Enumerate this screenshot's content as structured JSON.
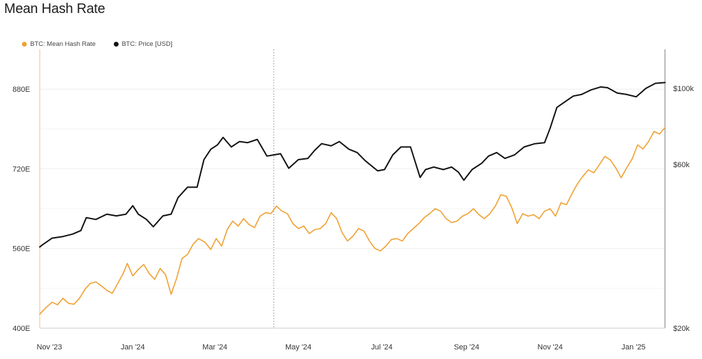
{
  "title": "Mean Hash Rate",
  "colors": {
    "hash": "#f0a030",
    "price": "#111111",
    "grid": "#eeeeee",
    "axis": "#888888"
  },
  "legend": {
    "hash": "BTC: Mean Hash Rate",
    "price": "BTC: Price [USD]"
  },
  "chart_data": {
    "type": "line",
    "x_start": "2023-11-01",
    "x_end": "2025-01-31",
    "x_ticks": [
      {
        "date": "2023-11-01",
        "label": "Nov '23"
      },
      {
        "date": "2024-01-01",
        "label": "Jan '24"
      },
      {
        "date": "2024-03-01",
        "label": "Mar '24"
      },
      {
        "date": "2024-05-01",
        "label": "May '24"
      },
      {
        "date": "2024-07-01",
        "label": "Jul '24"
      },
      {
        "date": "2024-09-01",
        "label": "Sep '24"
      },
      {
        "date": "2024-11-01",
        "label": "Nov '24"
      },
      {
        "date": "2025-01-01",
        "label": "Jan '25"
      }
    ],
    "marker_date": "2024-04-20",
    "y_left": {
      "min": 400,
      "max": 960,
      "ticks": [
        {
          "v": 400,
          "label": "400E"
        },
        {
          "v": 560,
          "label": "560E"
        },
        {
          "v": 720,
          "label": "720E"
        },
        {
          "v": 880,
          "label": "880E"
        }
      ]
    },
    "y_right": {
      "min": 20000,
      "max": 130000,
      "scale": "log",
      "ticks": [
        {
          "v": 20000,
          "label": "$20k"
        },
        {
          "v": 60000,
          "label": "$60k"
        },
        {
          "v": 100000,
          "label": "$100k"
        }
      ]
    },
    "series": [
      {
        "name": "BTC: Mean Hash Rate",
        "axis": "left",
        "points": [
          [
            "2023-11-01",
            428
          ],
          [
            "2023-11-05",
            440
          ],
          [
            "2023-11-10",
            452
          ],
          [
            "2023-11-14",
            447
          ],
          [
            "2023-11-18",
            460
          ],
          [
            "2023-11-22",
            450
          ],
          [
            "2023-11-26",
            448
          ],
          [
            "2023-11-30",
            460
          ],
          [
            "2023-12-04",
            478
          ],
          [
            "2023-12-08",
            490
          ],
          [
            "2023-12-12",
            493
          ],
          [
            "2023-12-16",
            485
          ],
          [
            "2023-12-20",
            476
          ],
          [
            "2023-12-24",
            470
          ],
          [
            "2023-12-28",
            490
          ],
          [
            "2024-01-01",
            510
          ],
          [
            "2024-01-04",
            530
          ],
          [
            "2024-01-08",
            505
          ],
          [
            "2024-01-12",
            518
          ],
          [
            "2024-01-16",
            528
          ],
          [
            "2024-01-20",
            510
          ],
          [
            "2024-01-24",
            498
          ],
          [
            "2024-01-28",
            520
          ],
          [
            "2024-02-01",
            507
          ],
          [
            "2024-02-05",
            468
          ],
          [
            "2024-02-09",
            500
          ],
          [
            "2024-02-13",
            540
          ],
          [
            "2024-02-17",
            548
          ],
          [
            "2024-02-21",
            568
          ],
          [
            "2024-02-25",
            580
          ],
          [
            "2024-03-01",
            572
          ],
          [
            "2024-03-05",
            558
          ],
          [
            "2024-03-09",
            580
          ],
          [
            "2024-03-13",
            565
          ],
          [
            "2024-03-17",
            598
          ],
          [
            "2024-03-21",
            615
          ],
          [
            "2024-03-25",
            605
          ],
          [
            "2024-03-29",
            620
          ],
          [
            "2024-04-02",
            608
          ],
          [
            "2024-04-06",
            602
          ],
          [
            "2024-04-10",
            625
          ],
          [
            "2024-04-14",
            632
          ],
          [
            "2024-04-18",
            630
          ],
          [
            "2024-04-22",
            645
          ],
          [
            "2024-04-26",
            635
          ],
          [
            "2024-04-30",
            630
          ],
          [
            "2024-05-04",
            610
          ],
          [
            "2024-05-08",
            600
          ],
          [
            "2024-05-12",
            605
          ],
          [
            "2024-05-16",
            590
          ],
          [
            "2024-05-20",
            598
          ],
          [
            "2024-05-24",
            600
          ],
          [
            "2024-05-28",
            610
          ],
          [
            "2024-06-01",
            632
          ],
          [
            "2024-06-05",
            620
          ],
          [
            "2024-06-09",
            592
          ],
          [
            "2024-06-13",
            575
          ],
          [
            "2024-06-17",
            585
          ],
          [
            "2024-06-21",
            600
          ],
          [
            "2024-06-25",
            595
          ],
          [
            "2024-06-29",
            575
          ],
          [
            "2024-07-03",
            560
          ],
          [
            "2024-07-07",
            555
          ],
          [
            "2024-07-11",
            565
          ],
          [
            "2024-07-15",
            578
          ],
          [
            "2024-07-19",
            580
          ],
          [
            "2024-07-23",
            575
          ],
          [
            "2024-07-27",
            590
          ],
          [
            "2024-07-31",
            600
          ],
          [
            "2024-08-04",
            610
          ],
          [
            "2024-08-08",
            622
          ],
          [
            "2024-08-12",
            630
          ],
          [
            "2024-08-16",
            640
          ],
          [
            "2024-08-20",
            635
          ],
          [
            "2024-08-24",
            620
          ],
          [
            "2024-08-28",
            612
          ],
          [
            "2024-09-01",
            615
          ],
          [
            "2024-09-05",
            625
          ],
          [
            "2024-09-09",
            630
          ],
          [
            "2024-09-13",
            640
          ],
          [
            "2024-09-17",
            628
          ],
          [
            "2024-09-21",
            620
          ],
          [
            "2024-09-25",
            630
          ],
          [
            "2024-09-29",
            645
          ],
          [
            "2024-10-03",
            668
          ],
          [
            "2024-10-07",
            665
          ],
          [
            "2024-10-11",
            642
          ],
          [
            "2024-10-15",
            610
          ],
          [
            "2024-10-19",
            630
          ],
          [
            "2024-10-23",
            625
          ],
          [
            "2024-10-27",
            628
          ],
          [
            "2024-10-31",
            620
          ],
          [
            "2024-11-04",
            635
          ],
          [
            "2024-11-08",
            640
          ],
          [
            "2024-11-12",
            625
          ],
          [
            "2024-11-16",
            652
          ],
          [
            "2024-11-20",
            648
          ],
          [
            "2024-11-24",
            670
          ],
          [
            "2024-11-28",
            690
          ],
          [
            "2024-12-02",
            705
          ],
          [
            "2024-12-06",
            718
          ],
          [
            "2024-12-10",
            712
          ],
          [
            "2024-12-14",
            728
          ],
          [
            "2024-12-18",
            745
          ],
          [
            "2024-12-22",
            738
          ],
          [
            "2024-12-26",
            722
          ],
          [
            "2024-12-30",
            702
          ],
          [
            "2025-01-03",
            722
          ],
          [
            "2025-01-07",
            740
          ],
          [
            "2025-01-11",
            768
          ],
          [
            "2025-01-15",
            760
          ],
          [
            "2025-01-19",
            775
          ],
          [
            "2025-01-23",
            795
          ],
          [
            "2025-01-27",
            790
          ],
          [
            "2025-01-31",
            803
          ]
        ]
      },
      {
        "name": "BTC: Price [USD]",
        "axis": "right",
        "points": [
          [
            "2023-11-01",
            34500
          ],
          [
            "2023-11-03",
            35000
          ],
          [
            "2023-11-10",
            36600
          ],
          [
            "2023-11-18",
            37000
          ],
          [
            "2023-11-25",
            37600
          ],
          [
            "2023-12-01",
            38500
          ],
          [
            "2023-12-05",
            42000
          ],
          [
            "2023-12-12",
            41500
          ],
          [
            "2023-12-20",
            43000
          ],
          [
            "2023-12-27",
            42500
          ],
          [
            "2024-01-03",
            43000
          ],
          [
            "2024-01-08",
            45500
          ],
          [
            "2024-01-12",
            43000
          ],
          [
            "2024-01-18",
            41500
          ],
          [
            "2024-01-23",
            39500
          ],
          [
            "2024-01-30",
            42500
          ],
          [
            "2024-02-05",
            43000
          ],
          [
            "2024-02-10",
            48000
          ],
          [
            "2024-02-17",
            51500
          ],
          [
            "2024-02-24",
            51500
          ],
          [
            "2024-02-29",
            62000
          ],
          [
            "2024-03-05",
            66500
          ],
          [
            "2024-03-10",
            68500
          ],
          [
            "2024-03-14",
            72000
          ],
          [
            "2024-03-20",
            67500
          ],
          [
            "2024-03-26",
            70000
          ],
          [
            "2024-04-01",
            69500
          ],
          [
            "2024-04-08",
            71000
          ],
          [
            "2024-04-15",
            63500
          ],
          [
            "2024-04-20",
            64000
          ],
          [
            "2024-04-25",
            64500
          ],
          [
            "2024-05-01",
            58500
          ],
          [
            "2024-05-08",
            62000
          ],
          [
            "2024-05-15",
            62500
          ],
          [
            "2024-05-20",
            66000
          ],
          [
            "2024-05-25",
            69000
          ],
          [
            "2024-06-01",
            68000
          ],
          [
            "2024-06-07",
            70000
          ],
          [
            "2024-06-14",
            66500
          ],
          [
            "2024-06-20",
            65000
          ],
          [
            "2024-06-26",
            61500
          ],
          [
            "2024-07-05",
            57500
          ],
          [
            "2024-07-10",
            58000
          ],
          [
            "2024-07-16",
            64000
          ],
          [
            "2024-07-22",
            67500
          ],
          [
            "2024-07-29",
            67500
          ],
          [
            "2024-08-05",
            55000
          ],
          [
            "2024-08-09",
            58000
          ],
          [
            "2024-08-15",
            59000
          ],
          [
            "2024-08-22",
            58000
          ],
          [
            "2024-08-28",
            59000
          ],
          [
            "2024-09-02",
            57000
          ],
          [
            "2024-09-06",
            54000
          ],
          [
            "2024-09-12",
            58000
          ],
          [
            "2024-09-19",
            60500
          ],
          [
            "2024-09-24",
            63500
          ],
          [
            "2024-09-30",
            65000
          ],
          [
            "2024-10-06",
            62500
          ],
          [
            "2024-10-13",
            64000
          ],
          [
            "2024-10-20",
            67500
          ],
          [
            "2024-10-28",
            69000
          ],
          [
            "2024-11-04",
            69500
          ],
          [
            "2024-11-08",
            76500
          ],
          [
            "2024-11-13",
            88000
          ],
          [
            "2024-11-19",
            91500
          ],
          [
            "2024-11-25",
            95000
          ],
          [
            "2024-12-01",
            96000
          ],
          [
            "2024-12-08",
            99000
          ],
          [
            "2024-12-15",
            101000
          ],
          [
            "2024-12-20",
            100500
          ],
          [
            "2024-12-27",
            97000
          ],
          [
            "2025-01-03",
            96000
          ],
          [
            "2025-01-10",
            94500
          ],
          [
            "2025-01-17",
            100000
          ],
          [
            "2025-01-24",
            103500
          ],
          [
            "2025-01-31",
            104000
          ]
        ]
      }
    ]
  }
}
